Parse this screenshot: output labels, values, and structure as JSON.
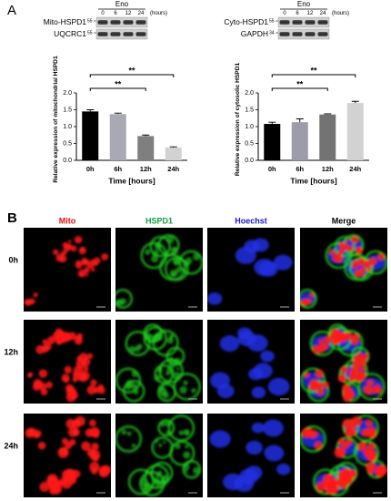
{
  "panel_a": {
    "label": "A"
  },
  "blots": [
    {
      "treatment": "Eno",
      "unit": "(hours)",
      "timepoints": [
        "0",
        "6",
        "12",
        "24"
      ],
      "rows": [
        {
          "name": "Mito-HSPD1",
          "marker": "55"
        },
        {
          "name": "UQCRC1",
          "marker": "55"
        }
      ]
    },
    {
      "treatment": "Eno",
      "unit": "(hours)",
      "timepoints": [
        "0",
        "6",
        "12",
        "24"
      ],
      "rows": [
        {
          "name": "Cyto-HSPD1",
          "marker": "55"
        },
        {
          "name": "GAPDH",
          "marker": "34"
        }
      ]
    }
  ],
  "chart_data": [
    {
      "type": "bar",
      "y_label": "Relative expression of mitochondrial HSPD1",
      "x_label": "Time [hours]",
      "categories": [
        "0h",
        "6h",
        "12h",
        "24h"
      ],
      "values": [
        1.45,
        1.37,
        0.72,
        0.38
      ],
      "errors": [
        0.05,
        0.03,
        0.03,
        0.02
      ],
      "colors": [
        "#000000",
        "#a9a9b4",
        "#7f7f7f",
        "#d2d2d2"
      ],
      "ylim": [
        0,
        2
      ],
      "yticks": [
        {
          "value": 0,
          "label": "0.0"
        },
        0.5,
        {
          "value": 1,
          "label": "1.0"
        },
        1.5,
        {
          "value": 2,
          "label": "2.0"
        }
      ],
      "significance": [
        {
          "pair": [
            "0h",
            "12h"
          ],
          "label": "**"
        },
        {
          "pair": [
            "0h",
            "24h"
          ],
          "label": "**"
        }
      ]
    },
    {
      "type": "bar",
      "y_label": "Relative expression of cytosolic HSPD1",
      "x_label": "Time [hours]",
      "categories": [
        "0h",
        "6h",
        "12h",
        "24h"
      ],
      "values": [
        1.08,
        1.13,
        1.36,
        1.7
      ],
      "errors": [
        0.05,
        0.1,
        0.02,
        0.05
      ],
      "colors": [
        "#000000",
        "#9c9cab",
        "#737373",
        "#d2d2d2"
      ],
      "ylim": [
        0,
        2
      ],
      "yticks": [
        {
          "value": 0,
          "label": "0.0"
        },
        0.5,
        {
          "value": 1,
          "label": "1.0"
        },
        1.5,
        {
          "value": 2,
          "label": "2.0"
        }
      ],
      "significance": [
        {
          "pair": [
            "0h",
            "12h"
          ],
          "label": "**"
        },
        {
          "pair": [
            "0h",
            "24h"
          ],
          "label": "**"
        }
      ]
    }
  ],
  "panel_b": {
    "label": "B",
    "columns": [
      {
        "name": "Mito",
        "color": "#e01010"
      },
      {
        "name": "HSPD1",
        "color": "#10a040"
      },
      {
        "name": "Hoechst",
        "color": "#1a1ad0"
      },
      {
        "name": "Merge",
        "color": "#000000"
      }
    ],
    "rows": [
      "0h",
      "12h",
      "24h"
    ]
  }
}
